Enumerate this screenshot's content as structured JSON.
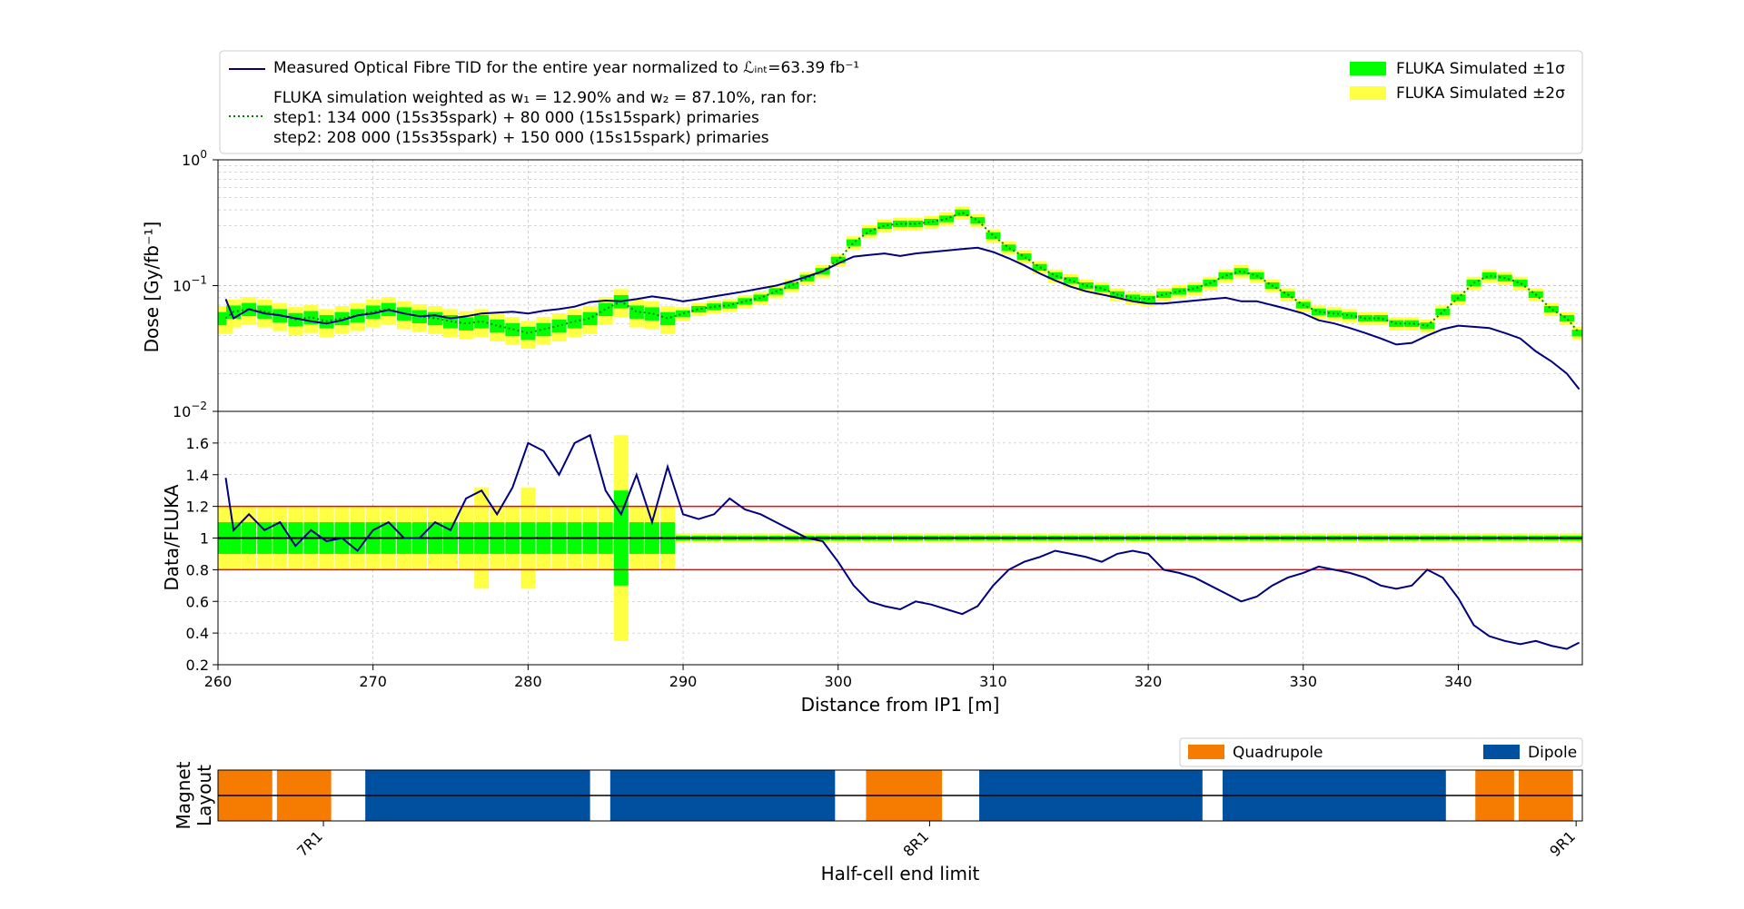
{
  "chart_data": [
    {
      "type": "line",
      "panel": "dose",
      "ylabel": "Dose [Gy/fb⁻¹]",
      "yscale": "log",
      "ylim": [
        0.01,
        1
      ],
      "ytick_labels": [
        {
          "base": "10",
          "exp": "−2",
          "value": 0.01
        },
        {
          "base": "10",
          "exp": "−1",
          "value": 0.1
        },
        {
          "base": "10",
          "exp": "0",
          "value": 1
        }
      ],
      "xlim": [
        260,
        348
      ],
      "grid": true,
      "legend_left": [
        {
          "text": "Measured Optical Fibre TID for the entire year normalized to ℒᵢₙₜ=63.39 fb⁻¹",
          "style": "line",
          "color": "#000080"
        },
        {
          "text": "FLUKA simulation weighted as w₁ = 12.90% and w₂ = 87.10%, ran for:",
          "style": "dotted",
          "color": "#008000"
        },
        {
          "text": "step1: 134 000 (15s35spark) +  80 000 (15s15spark) primaries"
        },
        {
          "text": "step2: 208 000 (15s35spark) + 150 000 (15s15spark) primaries"
        }
      ],
      "legend_right": [
        {
          "text": "FLUKA Simulated ±1σ",
          "color": "#00ff00"
        },
        {
          "text": "FLUKA Simulated ±2σ",
          "color": "#ffff44"
        }
      ],
      "measured": {
        "x": [
          260.5,
          261,
          262,
          263,
          264,
          265,
          266,
          267,
          268,
          269,
          270,
          271,
          272,
          273,
          274,
          275,
          276,
          277,
          278,
          279,
          280,
          281,
          282,
          283,
          284,
          285,
          286,
          287,
          288,
          289,
          290,
          291,
          292,
          293,
          294,
          295,
          296,
          297,
          298,
          299,
          300,
          301,
          302,
          303,
          304,
          305,
          306,
          307,
          308,
          309,
          310,
          311,
          312,
          313,
          314,
          315,
          316,
          317,
          318,
          319,
          320,
          321,
          322,
          323,
          324,
          325,
          326,
          327,
          328,
          329,
          330,
          331,
          332,
          333,
          334,
          335,
          336,
          337,
          338,
          339,
          340,
          341,
          342,
          343,
          344,
          345,
          346,
          347,
          347.8
        ],
        "y": [
          0.078,
          0.055,
          0.065,
          0.06,
          0.058,
          0.055,
          0.052,
          0.05,
          0.053,
          0.058,
          0.06,
          0.064,
          0.06,
          0.057,
          0.058,
          0.055,
          0.057,
          0.06,
          0.061,
          0.062,
          0.06,
          0.063,
          0.065,
          0.068,
          0.074,
          0.076,
          0.075,
          0.078,
          0.082,
          0.079,
          0.075,
          0.078,
          0.082,
          0.086,
          0.09,
          0.095,
          0.1,
          0.108,
          0.118,
          0.13,
          0.15,
          0.17,
          0.175,
          0.18,
          0.172,
          0.18,
          0.185,
          0.19,
          0.195,
          0.2,
          0.185,
          0.165,
          0.145,
          0.125,
          0.11,
          0.098,
          0.09,
          0.085,
          0.08,
          0.075,
          0.072,
          0.072,
          0.074,
          0.076,
          0.078,
          0.08,
          0.075,
          0.075,
          0.07,
          0.065,
          0.06,
          0.053,
          0.05,
          0.046,
          0.042,
          0.038,
          0.034,
          0.035,
          0.04,
          0.045,
          0.048,
          0.047,
          0.046,
          0.042,
          0.038,
          0.03,
          0.025,
          0.02,
          0.015
        ]
      },
      "simulated": {
        "x": [
          260.5,
          261,
          262,
          263,
          264,
          265,
          266,
          267,
          268,
          269,
          270,
          271,
          272,
          273,
          274,
          275,
          276,
          277,
          278,
          279,
          280,
          281,
          282,
          283,
          284,
          285,
          286,
          287,
          288,
          289,
          290,
          291,
          292,
          293,
          294,
          295,
          296,
          297,
          298,
          299,
          300,
          301,
          302,
          303,
          304,
          305,
          306,
          307,
          308,
          309,
          310,
          311,
          312,
          313,
          314,
          315,
          316,
          317,
          318,
          319,
          320,
          321,
          322,
          323,
          324,
          325,
          326,
          327,
          328,
          329,
          330,
          331,
          332,
          333,
          334,
          335,
          336,
          337,
          338,
          339,
          340,
          341,
          342,
          343,
          344,
          345,
          346,
          347,
          347.8
        ],
        "y": [
          0.055,
          0.062,
          0.065,
          0.062,
          0.058,
          0.054,
          0.056,
          0.052,
          0.055,
          0.058,
          0.062,
          0.065,
          0.06,
          0.057,
          0.055,
          0.052,
          0.05,
          0.052,
          0.048,
          0.045,
          0.042,
          0.045,
          0.048,
          0.052,
          0.055,
          0.065,
          0.075,
          0.062,
          0.06,
          0.055,
          0.06,
          0.065,
          0.068,
          0.07,
          0.075,
          0.08,
          0.09,
          0.1,
          0.115,
          0.13,
          0.16,
          0.22,
          0.27,
          0.3,
          0.31,
          0.31,
          0.32,
          0.34,
          0.38,
          0.33,
          0.25,
          0.2,
          0.17,
          0.14,
          0.12,
          0.11,
          0.1,
          0.095,
          0.085,
          0.08,
          0.078,
          0.085,
          0.09,
          0.095,
          0.105,
          0.12,
          0.13,
          0.12,
          0.1,
          0.085,
          0.07,
          0.062,
          0.06,
          0.058,
          0.055,
          0.055,
          0.05,
          0.05,
          0.048,
          0.062,
          0.08,
          0.105,
          0.12,
          0.115,
          0.105,
          0.085,
          0.065,
          0.055,
          0.042
        ]
      }
    },
    {
      "type": "line",
      "panel": "ratio",
      "ylabel": "Data/FLUKA",
      "xlabel": "Distance from IP1 [m]",
      "xlim": [
        260,
        348
      ],
      "xticks": [
        260,
        270,
        280,
        290,
        300,
        310,
        320,
        330,
        340
      ],
      "ylim": [
        0.2,
        1.8
      ],
      "yticks": [
        "0.2",
        "0.4",
        "0.6",
        "0.8",
        "1",
        "1.2",
        "1.4",
        "1.6"
      ],
      "reference_lines": [
        0.8,
        1.2
      ],
      "ratio": {
        "x": [
          260.5,
          261,
          262,
          263,
          264,
          265,
          266,
          267,
          268,
          269,
          270,
          271,
          272,
          273,
          274,
          275,
          276,
          277,
          278,
          279,
          280,
          281,
          282,
          283,
          284,
          285,
          286,
          287,
          288,
          289,
          290,
          291,
          292,
          293,
          294,
          295,
          296,
          297,
          298,
          299,
          300,
          301,
          302,
          303,
          304,
          305,
          306,
          307,
          308,
          309,
          310,
          311,
          312,
          313,
          314,
          315,
          316,
          317,
          318,
          319,
          320,
          321,
          322,
          323,
          324,
          325,
          326,
          327,
          328,
          329,
          330,
          331,
          332,
          333,
          334,
          335,
          336,
          337,
          338,
          339,
          340,
          341,
          342,
          343,
          344,
          345,
          346,
          347,
          347.8
        ],
        "y": [
          1.38,
          1.05,
          1.15,
          1.05,
          1.1,
          0.95,
          1.05,
          0.98,
          1.0,
          0.92,
          1.05,
          1.1,
          1.0,
          1.0,
          1.1,
          1.05,
          1.25,
          1.3,
          1.15,
          1.32,
          1.6,
          1.55,
          1.4,
          1.6,
          1.65,
          1.3,
          1.15,
          1.4,
          1.1,
          1.45,
          1.15,
          1.12,
          1.15,
          1.25,
          1.18,
          1.15,
          1.1,
          1.05,
          1.0,
          0.98,
          0.85,
          0.7,
          0.6,
          0.57,
          0.55,
          0.6,
          0.58,
          0.55,
          0.52,
          0.57,
          0.7,
          0.8,
          0.85,
          0.88,
          0.92,
          0.9,
          0.88,
          0.85,
          0.9,
          0.92,
          0.9,
          0.8,
          0.78,
          0.75,
          0.7,
          0.65,
          0.6,
          0.63,
          0.7,
          0.75,
          0.78,
          0.82,
          0.8,
          0.78,
          0.75,
          0.7,
          0.68,
          0.7,
          0.8,
          0.75,
          0.62,
          0.45,
          0.38,
          0.35,
          0.33,
          0.35,
          0.32,
          0.3,
          0.34
        ]
      }
    },
    {
      "type": "bar",
      "panel": "magnet-layout",
      "ylabel": "Magnet\nLayout",
      "xlabel": "Half-cell end limit",
      "xtick_labels": [
        "7R1",
        "8R1",
        "9R1"
      ],
      "legend": [
        {
          "text": "Quadrupole",
          "color": "#f57c00"
        },
        {
          "text": "Dipole",
          "color": "#0050a0"
        }
      ],
      "segments": [
        {
          "type": "Quadrupole",
          "start": 260,
          "end": 263.5
        },
        {
          "type": "Quadrupole",
          "start": 263.8,
          "end": 267.3
        },
        {
          "type": "Dipole",
          "start": 269.5,
          "end": 284
        },
        {
          "type": "Dipole",
          "start": 285.3,
          "end": 299.8
        },
        {
          "type": "Quadrupole",
          "start": 301.8,
          "end": 306.7
        },
        {
          "type": "Dipole",
          "start": 309.1,
          "end": 323.5
        },
        {
          "type": "Dipole",
          "start": 324.8,
          "end": 339.2
        },
        {
          "type": "Quadrupole",
          "start": 341.1,
          "end": 343.6
        },
        {
          "type": "Quadrupole",
          "start": 343.9,
          "end": 347.4
        }
      ]
    }
  ]
}
